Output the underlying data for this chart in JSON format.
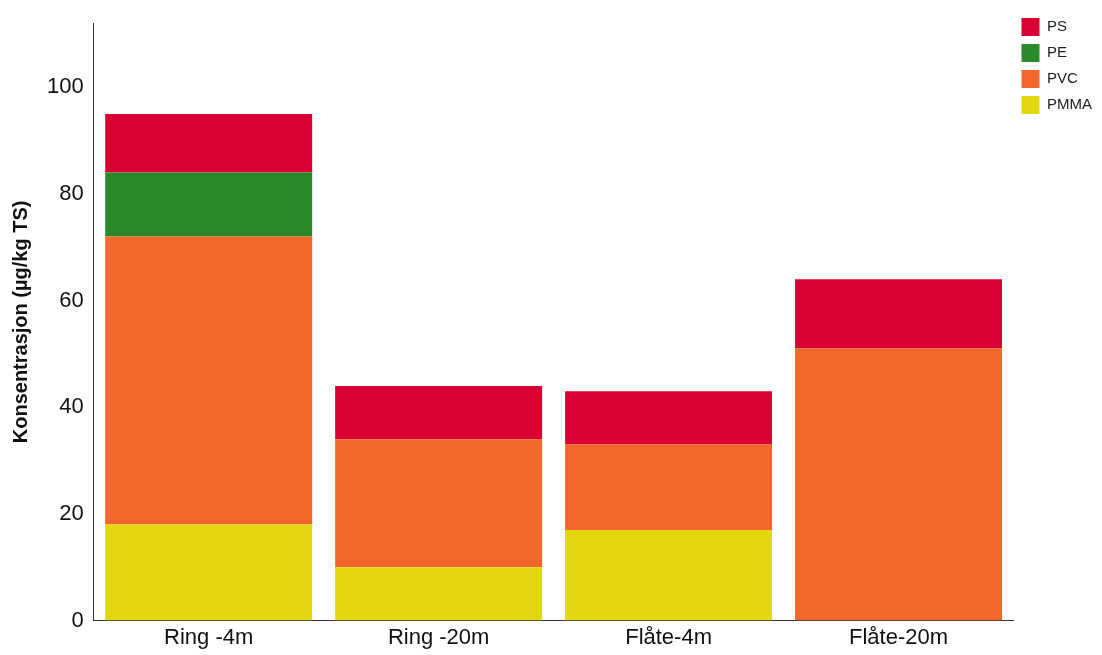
{
  "chart_data": {
    "type": "bar",
    "ylabel": "Konsentrasjon (µg/kg TS)",
    "categories": [
      "Ring -4m",
      "Ring -20m",
      "Flåte-4m",
      "Flåte-20m"
    ],
    "stacked": true,
    "series": [
      {
        "name": "PMMA",
        "color": "#e3d80f",
        "values": [
          18,
          10,
          17,
          0
        ]
      },
      {
        "name": "PVC",
        "color": "#f2682c",
        "values": [
          54,
          24,
          16,
          51
        ]
      },
      {
        "name": "PE",
        "color": "#2a8a2a",
        "values": [
          12,
          0,
          0,
          0
        ]
      },
      {
        "name": "PS",
        "color": "#d80032",
        "values": [
          11,
          10,
          10,
          13
        ]
      }
    ],
    "ylim": [
      0,
      112
    ],
    "yticks": [
      0,
      20,
      40,
      60,
      80,
      100
    ],
    "grid": false,
    "legend": "top right"
  }
}
